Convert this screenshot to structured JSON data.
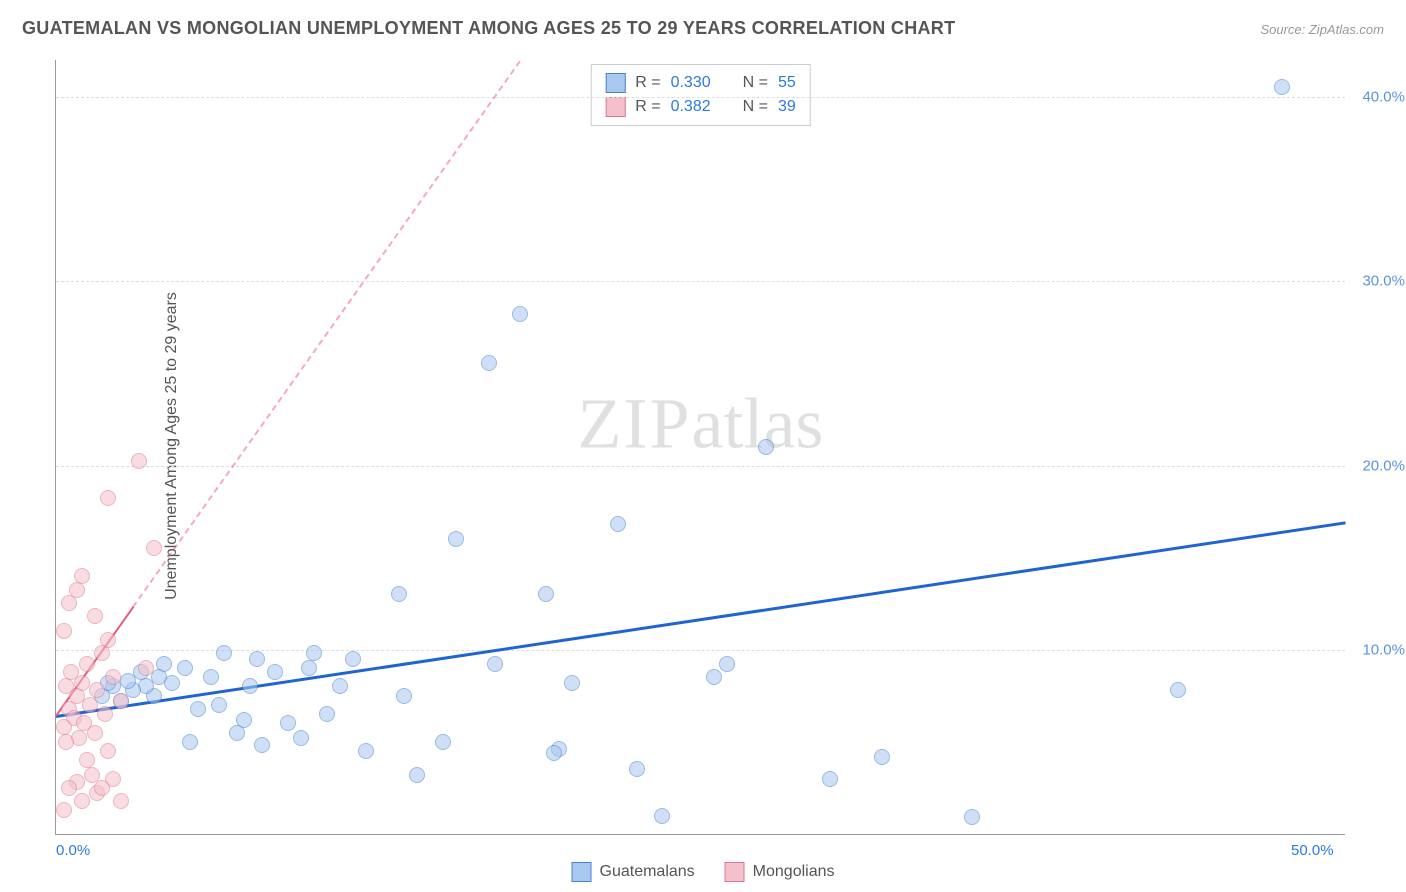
{
  "title": "GUATEMALAN VS MONGOLIAN UNEMPLOYMENT AMONG AGES 25 TO 29 YEARS CORRELATION CHART",
  "source_label": "Source: ",
  "source_value": "ZipAtlas.com",
  "y_axis_label": "Unemployment Among Ages 25 to 29 years",
  "watermark_zip": "ZIP",
  "watermark_atlas": "atlas",
  "chart": {
    "type": "scatter",
    "background_color": "#ffffff",
    "grid_color": "#dddddd",
    "axis_color": "#999999",
    "x_range": [
      0,
      50
    ],
    "y_range": [
      0,
      42
    ],
    "x_ticks": [
      {
        "value": 0,
        "label": "0.0%",
        "color": "#2b7ae0"
      },
      {
        "value": 50,
        "label": "50.0%",
        "color": "#2b7ae0"
      }
    ],
    "y_ticks": [
      {
        "value": 10,
        "label": "10.0%",
        "color": "#5b93e0"
      },
      {
        "value": 20,
        "label": "20.0%",
        "color": "#5b93e0"
      },
      {
        "value": 30,
        "label": "30.0%",
        "color": "#5b93e0"
      },
      {
        "value": 40,
        "label": "40.0%",
        "color": "#5b93e0"
      }
    ],
    "point_radius": 8,
    "point_opacity": 0.55,
    "series": [
      {
        "name": "Guatemalans",
        "fill_color": "#a8c8f0",
        "stroke_color": "#4a82d0",
        "trend_color": "#2064d0",
        "trend_width": 3,
        "trend_start": [
          0,
          6.5
        ],
        "trend_end": [
          50,
          17.0
        ],
        "R": "0.330",
        "N": "55",
        "points": [
          [
            47.5,
            40.5
          ],
          [
            43.5,
            7.8
          ],
          [
            35.5,
            0.9
          ],
          [
            32.0,
            4.2
          ],
          [
            30.0,
            3.0
          ],
          [
            26.0,
            9.2
          ],
          [
            27.5,
            21.0
          ],
          [
            25.5,
            8.5
          ],
          [
            23.5,
            1.0
          ],
          [
            22.5,
            3.5
          ],
          [
            21.8,
            16.8
          ],
          [
            20.0,
            8.2
          ],
          [
            19.5,
            4.6
          ],
          [
            19.3,
            4.4
          ],
          [
            19.0,
            13.0
          ],
          [
            18.0,
            28.2
          ],
          [
            17.0,
            9.2
          ],
          [
            16.8,
            25.5
          ],
          [
            15.5,
            16.0
          ],
          [
            15.0,
            5.0
          ],
          [
            14.0,
            3.2
          ],
          [
            13.5,
            7.5
          ],
          [
            13.3,
            13.0
          ],
          [
            12.0,
            4.5
          ],
          [
            11.5,
            9.5
          ],
          [
            11.0,
            8.0
          ],
          [
            10.5,
            6.5
          ],
          [
            10.0,
            9.8
          ],
          [
            9.8,
            9.0
          ],
          [
            9.5,
            5.2
          ],
          [
            9.0,
            6.0
          ],
          [
            8.5,
            8.8
          ],
          [
            8.0,
            4.8
          ],
          [
            7.8,
            9.5
          ],
          [
            7.5,
            8.0
          ],
          [
            7.3,
            6.2
          ],
          [
            7.0,
            5.5
          ],
          [
            6.5,
            9.8
          ],
          [
            6.3,
            7.0
          ],
          [
            6.0,
            8.5
          ],
          [
            5.5,
            6.8
          ],
          [
            5.2,
            5.0
          ],
          [
            5.0,
            9.0
          ],
          [
            4.5,
            8.2
          ],
          [
            4.2,
            9.2
          ],
          [
            4.0,
            8.5
          ],
          [
            3.8,
            7.5
          ],
          [
            3.5,
            8.0
          ],
          [
            3.3,
            8.8
          ],
          [
            3.0,
            7.8
          ],
          [
            2.8,
            8.3
          ],
          [
            2.5,
            7.2
          ],
          [
            2.2,
            8.0
          ],
          [
            2.0,
            8.2
          ],
          [
            1.8,
            7.5
          ]
        ]
      },
      {
        "name": "Mongolians",
        "fill_color": "#f5c0ca",
        "stroke_color": "#e07890",
        "trend_color": "#e85a7a",
        "trend_width": 2.5,
        "trend_dash_after": [
          3,
          15
        ],
        "trend_start": [
          0,
          6.5
        ],
        "trend_end": [
          18,
          42
        ],
        "R": "0.382",
        "N": "39",
        "points": [
          [
            3.2,
            20.2
          ],
          [
            2.0,
            18.2
          ],
          [
            3.8,
            15.5
          ],
          [
            1.0,
            14.0
          ],
          [
            0.8,
            13.2
          ],
          [
            0.5,
            12.5
          ],
          [
            1.5,
            11.8
          ],
          [
            0.3,
            11.0
          ],
          [
            2.0,
            10.5
          ],
          [
            1.8,
            9.8
          ],
          [
            1.2,
            9.2
          ],
          [
            3.5,
            9.0
          ],
          [
            0.6,
            8.8
          ],
          [
            2.2,
            8.5
          ],
          [
            1.0,
            8.2
          ],
          [
            0.4,
            8.0
          ],
          [
            1.6,
            7.8
          ],
          [
            0.8,
            7.5
          ],
          [
            2.5,
            7.2
          ],
          [
            1.3,
            7.0
          ],
          [
            0.5,
            6.8
          ],
          [
            1.9,
            6.5
          ],
          [
            0.7,
            6.3
          ],
          [
            1.1,
            6.0
          ],
          [
            0.3,
            5.8
          ],
          [
            1.5,
            5.5
          ],
          [
            0.9,
            5.2
          ],
          [
            0.4,
            5.0
          ],
          [
            2.0,
            4.5
          ],
          [
            1.2,
            4.0
          ],
          [
            1.4,
            3.2
          ],
          [
            2.2,
            3.0
          ],
          [
            0.8,
            2.8
          ],
          [
            0.5,
            2.5
          ],
          [
            1.6,
            2.2
          ],
          [
            1.0,
            1.8
          ],
          [
            0.3,
            1.3
          ],
          [
            2.5,
            1.8
          ],
          [
            1.8,
            2.5
          ]
        ]
      }
    ]
  },
  "stats_legend": {
    "rows": [
      {
        "swatch_fill": "#a8c8f0",
        "swatch_stroke": "#4a82d0",
        "r_label": "R =",
        "r_val": "0.330",
        "n_label": "N =",
        "n_val": "55"
      },
      {
        "swatch_fill": "#f5c0ca",
        "swatch_stroke": "#e07890",
        "r_label": "R =",
        "r_val": "0.382",
        "n_label": "N =",
        "n_val": "39"
      }
    ]
  },
  "bottom_legend": [
    {
      "swatch_fill": "#a8c8f0",
      "swatch_stroke": "#4a82d0",
      "label": "Guatemalans"
    },
    {
      "swatch_fill": "#f5c0ca",
      "swatch_stroke": "#e07890",
      "label": "Mongolians"
    }
  ]
}
